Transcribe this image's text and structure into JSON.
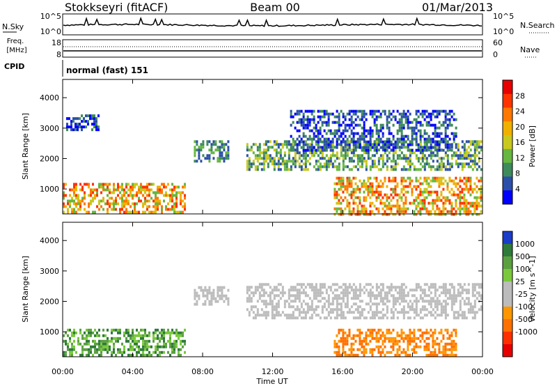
{
  "header": {
    "station": "Stokkseyri (fitACF)",
    "beam": "Beam 00",
    "date": "01/Mar/2013"
  },
  "noise_panel": {
    "left_label": "N.Sky",
    "right_label": "N.Search",
    "left_ticks": [
      "10^5",
      "10^0"
    ],
    "right_ticks": [
      "10^5",
      "10^0"
    ]
  },
  "freq_panel": {
    "left_label_top": "Freq.",
    "left_label_unit": "[MHz]",
    "right_label": "Nave",
    "left_ticks": [
      "18",
      "8"
    ],
    "right_ticks": [
      "60",
      "0"
    ]
  },
  "cpid": {
    "label": "CPID",
    "mode": "normal (fast) 151"
  },
  "x_axis": {
    "label": "Time UT",
    "ticks": [
      "00:00",
      "04:00",
      "08:00",
      "12:00",
      "16:00",
      "20:00",
      "00:00"
    ]
  },
  "colors": {
    "power_scale": [
      "#0000ff",
      "#2b4fa8",
      "#3d8a5a",
      "#66b640",
      "#c8c81e",
      "#f0b000",
      "#ff7700",
      "#ff3300",
      "#e60000"
    ],
    "velocity_scale": [
      "#1a3cc8",
      "#2e7a3a",
      "#5aa040",
      "#7ac83c",
      "#bcbcbc",
      "#bcbcbc",
      "#ff9600",
      "#ff7000",
      "#ff3000",
      "#e60000"
    ]
  },
  "chart_data": [
    {
      "type": "heatmap",
      "name": "power",
      "ylabel": "Slant Range [km]",
      "xlabel": "",
      "ylim": [
        180,
        4600
      ],
      "y_ticks": [
        1000,
        2000,
        3000,
        4000
      ],
      "colorbar_label": "Power [dB]",
      "colorbar_ticks": [
        4,
        8,
        12,
        16,
        20,
        24,
        28
      ],
      "colorbar_range": [
        0,
        32
      ],
      "x_unit": "hours UT",
      "regions": [
        {
          "x": [
            0,
            7.0
          ],
          "y": [
            200,
            1200
          ],
          "level": "high"
        },
        {
          "x": [
            0.2,
            2.0
          ],
          "y": [
            2950,
            3450
          ],
          "level": "low"
        },
        {
          "x": [
            7.5,
            9.5
          ],
          "y": [
            1900,
            2600
          ],
          "level": "low-mid"
        },
        {
          "x": [
            10.5,
            23.9
          ],
          "y": [
            1600,
            2600
          ],
          "level": "mid"
        },
        {
          "x": [
            15.5,
            23.9
          ],
          "y": [
            200,
            1400
          ],
          "level": "high"
        },
        {
          "x": [
            13.0,
            22.5
          ],
          "y": [
            2300,
            3600
          ],
          "level": "low"
        }
      ]
    },
    {
      "type": "heatmap",
      "name": "velocity",
      "ylabel": "Slant Range [km]",
      "xlabel": "Time UT",
      "ylim": [
        180,
        4600
      ],
      "y_ticks": [
        1000,
        2000,
        3000,
        4000
      ],
      "colorbar_label": "Velocity [m s^-1]",
      "colorbar_ticks": [
        "1000",
        "500",
        "100",
        "25",
        "-25",
        "-100",
        "-500",
        "-1000"
      ],
      "x_unit": "hours UT",
      "regions": [
        {
          "x": [
            0,
            7.0
          ],
          "y": [
            200,
            1100
          ],
          "level": "green"
        },
        {
          "x": [
            7.5,
            9.5
          ],
          "y": [
            1900,
            2500
          ],
          "level": "grey"
        },
        {
          "x": [
            10.5,
            23.9
          ],
          "y": [
            1500,
            2600
          ],
          "level": "grey"
        },
        {
          "x": [
            15.5,
            22.5
          ],
          "y": [
            200,
            1100
          ],
          "level": "orange"
        }
      ]
    }
  ]
}
